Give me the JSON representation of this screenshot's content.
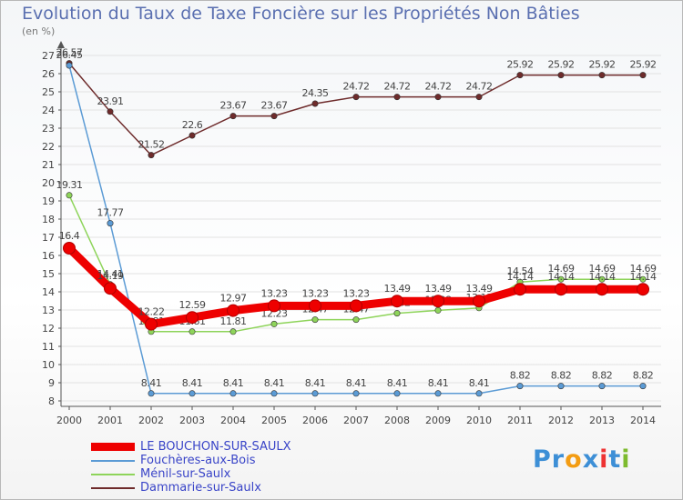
{
  "chart_data": {
    "type": "line",
    "title": "Evolution du Taux de Taxe Foncière sur les Propriétés Non Bâties",
    "ylabel": "(en %)",
    "xlabel": "",
    "ylim": [
      8,
      27
    ],
    "yticks": [
      "8",
      "9",
      "10",
      "11",
      "12",
      "13",
      "14",
      "15",
      "16",
      "17",
      "18",
      "19",
      "20",
      "21",
      "22",
      "23",
      "24",
      "25",
      "26",
      "27"
    ],
    "x": [
      "2000",
      "2001",
      "2002",
      "2003",
      "2004",
      "2005",
      "2006",
      "2007",
      "2008",
      "2009",
      "2010",
      "2011",
      "2012",
      "2013",
      "2014"
    ],
    "series": [
      {
        "name": "LE BOUCHON-SUR-SAULX",
        "color": "#ee0000",
        "values": [
          16.4,
          14.19,
          12.22,
          12.59,
          12.97,
          13.23,
          13.23,
          13.23,
          13.49,
          13.49,
          13.49,
          14.14,
          14.14,
          14.14,
          14.14
        ],
        "labels": [
          "16.4",
          "14.19",
          "12.22",
          "12.59",
          "12.97",
          "13.23",
          "13.23",
          "13.23",
          "13.49",
          "13.49",
          "13.49",
          "14.14",
          "14.14",
          "14.14",
          "14.14"
        ]
      },
      {
        "name": "Fouchères-aux-Bois",
        "color": "#5b9bd5",
        "values": [
          26.45,
          17.77,
          8.41,
          8.41,
          8.41,
          8.41,
          8.41,
          8.41,
          8.41,
          8.41,
          8.41,
          8.82,
          8.82,
          8.82,
          8.82
        ],
        "labels": [
          "26.45",
          "17.77",
          "8.41",
          "8.41",
          "8.41",
          "8.41",
          "8.41",
          "8.41",
          "8.41",
          "8.41",
          "8.41",
          "8.82",
          "8.82",
          "8.82",
          "8.82"
        ]
      },
      {
        "name": "Ménil-sur-Saulx",
        "color": "#8ed45a",
        "values": [
          19.31,
          14.41,
          11.81,
          11.81,
          11.81,
          12.23,
          12.47,
          12.47,
          12.82,
          12.98,
          13.11,
          14.54,
          14.69,
          14.69,
          14.69
        ],
        "labels": [
          "19.31",
          "14.41",
          "11.81",
          "11.81",
          "11.81",
          "12.23",
          "12.47",
          "12.47",
          "12.82",
          "12.98",
          "13.11",
          "14.54",
          "14.69",
          "14.69",
          "14.69"
        ]
      },
      {
        "name": "Dammarie-sur-Saulx",
        "color": "#6e2b2b",
        "values": [
          26.57,
          23.91,
          21.52,
          22.6,
          23.67,
          23.67,
          24.35,
          24.72,
          24.72,
          24.72,
          24.72,
          25.92,
          25.92,
          25.92,
          25.92
        ],
        "labels": [
          "26.57",
          "23.91",
          "21.52",
          "22.6",
          "23.67",
          "23.67",
          "24.35",
          "24.72",
          "24.72",
          "24.72",
          "24.72",
          "25.92",
          "25.92",
          "25.92",
          "25.92"
        ]
      }
    ]
  },
  "brand": {
    "letters": [
      "P",
      "r",
      "o",
      "x",
      "i",
      "t",
      "i"
    ],
    "colors": [
      "#3d8fd6",
      "#3d8fd6",
      "#f39c12",
      "#3d8fd6",
      "#ee3333",
      "#3d8fd6",
      "#7dbb2e"
    ]
  }
}
